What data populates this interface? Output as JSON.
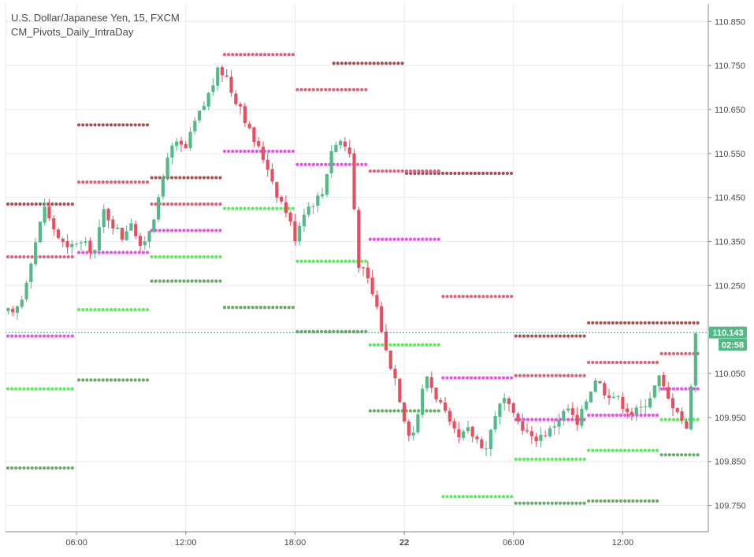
{
  "header": {
    "symbol_line": "U.S. Dollar/Japanese Yen, 15, FXCM",
    "indicator_line": "CM_Pivots_Daily_IntraDay"
  },
  "colors": {
    "up": "#53b987",
    "down": "#eb4d5c",
    "grid": "#e6e9ee",
    "axis_text": "#4a4a4a",
    "price_badge": "#53b987",
    "current_line": "#2e9e8a",
    "pivot_dark_red": "#a85050",
    "pivot_red": "#e0607a",
    "pivot_magenta": "#f04ee8",
    "pivot_green": "#56ef56",
    "pivot_dark_green": "#66aa66"
  },
  "chart_data": {
    "type": "candlestick",
    "symbol": "U.S. Dollar/Japanese Yen",
    "interval": "15",
    "source": "FXCM",
    "indicator": "CM_Pivots_Daily_IntraDay",
    "ylim": [
      109.69,
      110.89
    ],
    "xlim": [
      2.1,
      40.7
    ],
    "x_unit": "hours",
    "y_ticks": [
      110.85,
      110.75,
      110.65,
      110.55,
      110.45,
      110.35,
      110.25,
      110.15,
      110.05,
      109.95,
      109.85,
      109.75
    ],
    "y_tick_labels": [
      "110.850",
      "110.750",
      "110.650",
      "110.550",
      "110.450",
      "110.350",
      "110.250",
      "110.150",
      "110.050",
      "109.950",
      "109.850",
      "109.750"
    ],
    "x_ticks": [
      {
        "x": 6,
        "label": "06:00",
        "bold": false
      },
      {
        "x": 12,
        "label": "12:00",
        "bold": false
      },
      {
        "x": 18,
        "label": "18:00",
        "bold": false
      },
      {
        "x": 24,
        "label": "22",
        "bold": true
      },
      {
        "x": 30,
        "label": "06:00",
        "bold": false
      },
      {
        "x": 36,
        "label": "12:00",
        "bold": false
      }
    ],
    "current_price": 110.143,
    "current_price_label": "110.143",
    "countdown_label": "02:58",
    "grid": true,
    "candle_close_path": [
      [
        2.25,
        110.19
      ],
      [
        2.5,
        110.18
      ],
      [
        3.0,
        110.22
      ],
      [
        3.5,
        110.31
      ],
      [
        4.0,
        110.39
      ],
      [
        4.3,
        110.44
      ],
      [
        4.5,
        110.4
      ],
      [
        5.0,
        110.36
      ],
      [
        5.5,
        110.33
      ],
      [
        6.0,
        110.35
      ],
      [
        6.5,
        110.34
      ],
      [
        7.0,
        110.33
      ],
      [
        7.5,
        110.42
      ],
      [
        8.0,
        110.39
      ],
      [
        8.5,
        110.36
      ],
      [
        9.0,
        110.4
      ],
      [
        9.5,
        110.33
      ],
      [
        10.0,
        110.38
      ],
      [
        10.5,
        110.44
      ],
      [
        11.0,
        110.55
      ],
      [
        11.5,
        110.57
      ],
      [
        12.0,
        110.56
      ],
      [
        12.5,
        110.62
      ],
      [
        13.0,
        110.66
      ],
      [
        13.8,
        110.74
      ],
      [
        14.2,
        110.73
      ],
      [
        14.6,
        110.68
      ],
      [
        15.0,
        110.66
      ],
      [
        15.5,
        110.6
      ],
      [
        16.0,
        110.56
      ],
      [
        16.5,
        110.52
      ],
      [
        17.0,
        110.46
      ],
      [
        17.5,
        110.42
      ],
      [
        18.0,
        110.36
      ],
      [
        18.5,
        110.42
      ],
      [
        19.0,
        110.44
      ],
      [
        19.5,
        110.46
      ],
      [
        20.0,
        110.56
      ],
      [
        20.5,
        110.58
      ],
      [
        21.0,
        110.55
      ],
      [
        21.5,
        110.3
      ],
      [
        22.0,
        110.26
      ],
      [
        22.5,
        110.2
      ],
      [
        23.0,
        110.1
      ],
      [
        23.5,
        110.04
      ],
      [
        24.0,
        109.95
      ],
      [
        24.4,
        109.9
      ],
      [
        24.8,
        109.97
      ],
      [
        25.2,
        110.05
      ],
      [
        25.6,
        110.01
      ],
      [
        26.0,
        109.98
      ],
      [
        26.5,
        109.93
      ],
      [
        27.0,
        109.9
      ],
      [
        27.5,
        109.92
      ],
      [
        28.0,
        109.9
      ],
      [
        28.5,
        109.88
      ],
      [
        29.0,
        109.96
      ],
      [
        29.5,
        109.99
      ],
      [
        30.0,
        109.95
      ],
      [
        30.5,
        109.93
      ],
      [
        31.0,
        109.9
      ],
      [
        31.5,
        109.91
      ],
      [
        32.0,
        109.92
      ],
      [
        32.5,
        109.95
      ],
      [
        33.0,
        109.97
      ],
      [
        33.5,
        109.93
      ],
      [
        34.0,
        109.99
      ],
      [
        34.5,
        110.04
      ],
      [
        35.0,
        110.01
      ],
      [
        35.5,
        110.0
      ],
      [
        36.0,
        109.98
      ],
      [
        36.5,
        109.96
      ],
      [
        37.0,
        109.97
      ],
      [
        37.5,
        110.0
      ],
      [
        38.0,
        110.04
      ],
      [
        38.5,
        109.99
      ],
      [
        39.0,
        109.97
      ],
      [
        39.5,
        109.92
      ],
      [
        40.0,
        110.14
      ],
      [
        40.2,
        110.143
      ]
    ],
    "pivot_levels": [
      {
        "color": "#a85050",
        "segments": [
          [
            2.1,
            6.0,
            110.435
          ],
          [
            6.0,
            10.0,
            110.615
          ],
          [
            10.0,
            14.0,
            110.495
          ],
          [
            20.0,
            24.0,
            110.755
          ],
          [
            24.0,
            30.0,
            110.505
          ],
          [
            30.0,
            34.0,
            110.135
          ],
          [
            34.0,
            38.0,
            110.165
          ],
          [
            38.0,
            40.4,
            110.165
          ]
        ]
      },
      {
        "color": "#e0607a",
        "segments": [
          [
            2.1,
            6.0,
            110.315
          ],
          [
            6.0,
            10.0,
            110.485
          ],
          [
            10.0,
            14.0,
            110.435
          ],
          [
            14.0,
            18.0,
            110.775
          ],
          [
            18.0,
            22.0,
            110.695
          ],
          [
            22.0,
            26.0,
            110.51
          ],
          [
            26.0,
            30.0,
            110.225
          ],
          [
            30.0,
            34.0,
            110.045
          ],
          [
            34.0,
            38.0,
            110.075
          ],
          [
            38.0,
            40.4,
            110.095
          ]
        ]
      },
      {
        "color": "#f04ee8",
        "segments": [
          [
            2.1,
            6.0,
            110.135
          ],
          [
            6.0,
            10.0,
            110.325
          ],
          [
            10.0,
            14.0,
            110.375
          ],
          [
            14.0,
            18.0,
            110.555
          ],
          [
            18.0,
            22.0,
            110.525
          ],
          [
            22.0,
            26.0,
            110.355
          ],
          [
            26.0,
            30.0,
            110.04
          ],
          [
            30.0,
            34.0,
            109.945
          ],
          [
            34.0,
            38.0,
            109.955
          ],
          [
            38.0,
            40.4,
            110.015
          ]
        ]
      },
      {
        "color": "#56ef56",
        "segments": [
          [
            2.1,
            6.0,
            110.015
          ],
          [
            6.0,
            10.0,
            110.195
          ],
          [
            10.0,
            14.0,
            110.315
          ],
          [
            14.0,
            18.0,
            110.425
          ],
          [
            18.0,
            22.0,
            110.305
          ],
          [
            22.0,
            26.0,
            110.115
          ],
          [
            26.0,
            30.0,
            109.77
          ],
          [
            30.0,
            34.0,
            109.855
          ],
          [
            34.0,
            38.0,
            109.875
          ],
          [
            38.0,
            40.4,
            109.945
          ]
        ]
      },
      {
        "color": "#66aa66",
        "segments": [
          [
            2.1,
            6.0,
            109.835
          ],
          [
            6.0,
            10.0,
            110.035
          ],
          [
            10.0,
            14.0,
            110.26
          ],
          [
            14.0,
            18.0,
            110.2
          ],
          [
            18.0,
            22.0,
            110.145
          ],
          [
            22.0,
            26.0,
            109.965
          ],
          [
            30.0,
            34.0,
            109.755
          ],
          [
            34.0,
            38.0,
            109.76
          ],
          [
            38.0,
            40.4,
            109.865
          ]
        ]
      }
    ]
  }
}
